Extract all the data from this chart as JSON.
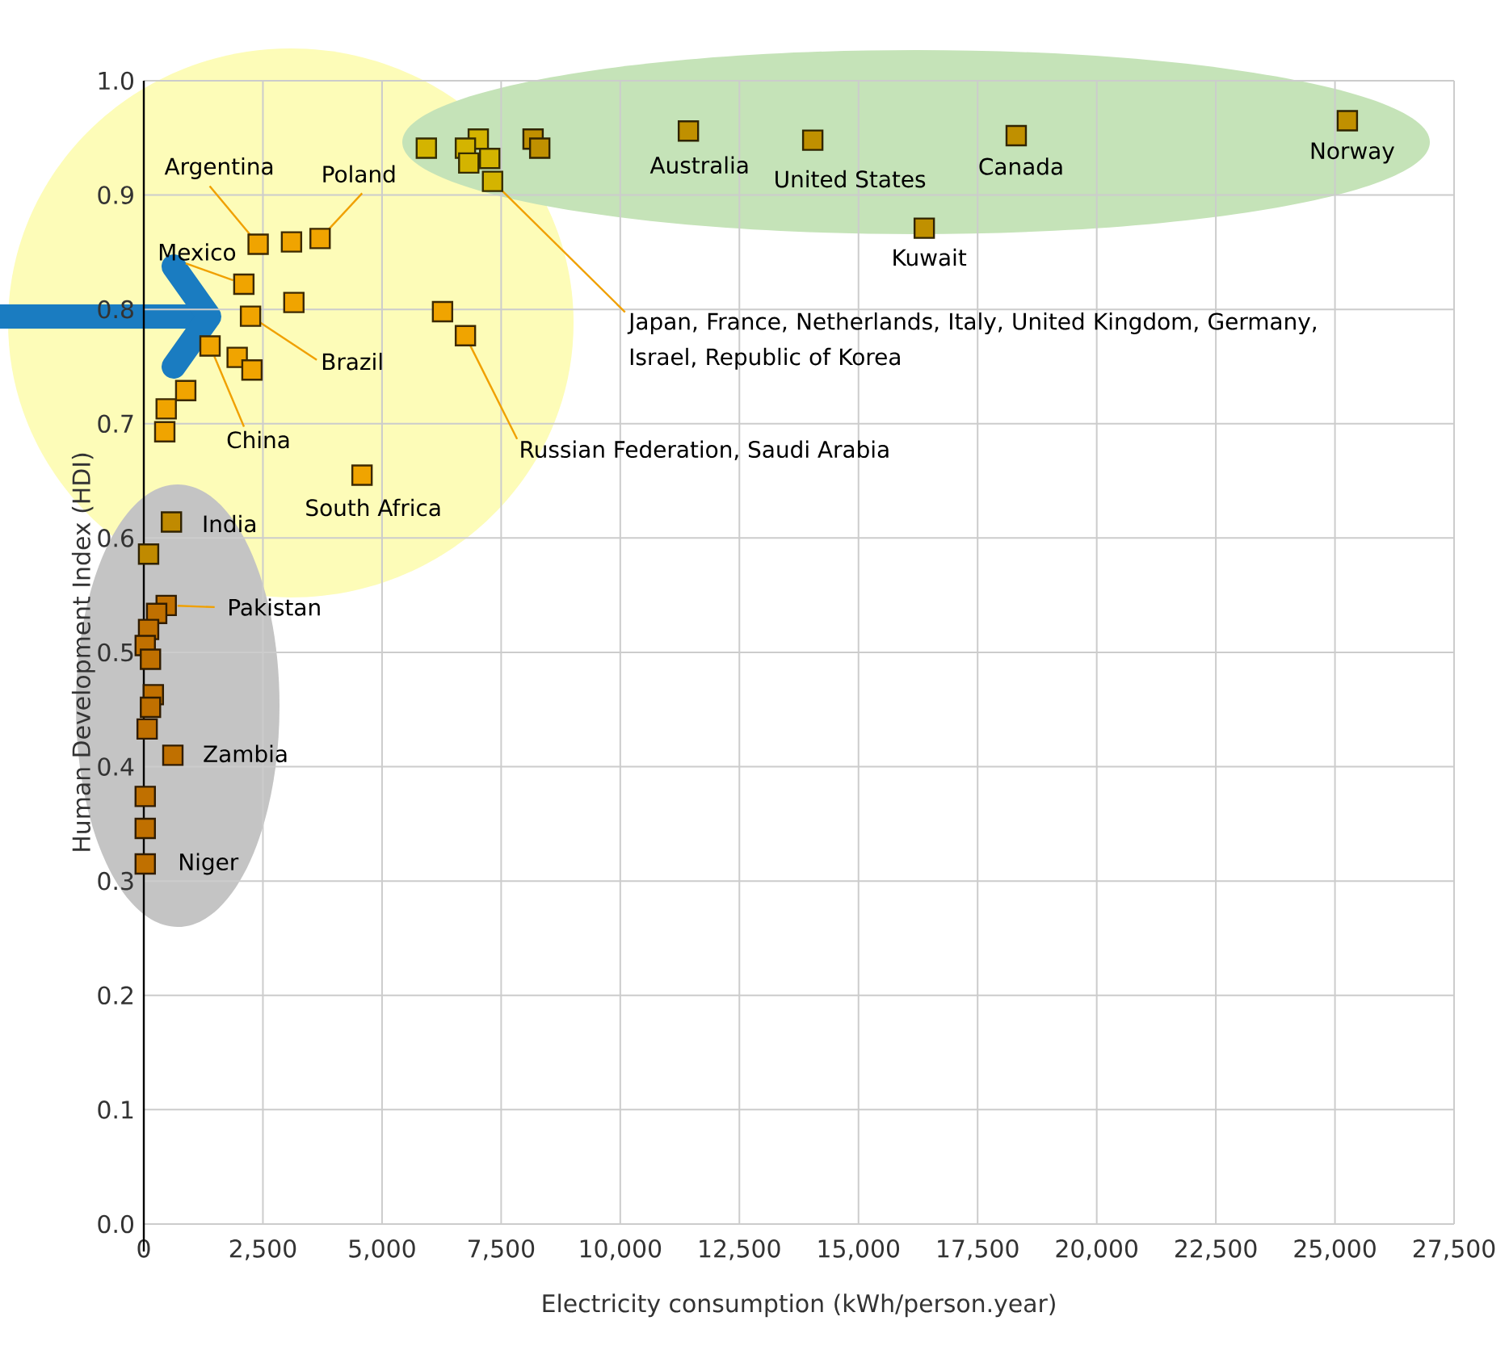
{
  "chart_data": {
    "type": "scatter",
    "xlabel": "Electricity consumption (kWh/person.year)",
    "ylabel": "Human Development Index (HDI)",
    "x": [
      2400,
      3100,
      3700,
      2100,
      3150,
      2240,
      1390,
      1960,
      2270,
      880,
      470,
      440,
      6270,
      6750,
      4580,
      580,
      100,
      470,
      270,
      100,
      30,
      140,
      200,
      140,
      70,
      610,
      30,
      30,
      30,
      5930,
      7020,
      6750,
      7260,
      6820,
      7320,
      8170,
      8310,
      11430,
      14040,
      18310,
      16380,
      25260
    ],
    "values": [
      0.857,
      0.859,
      0.862,
      0.822,
      0.806,
      0.794,
      0.768,
      0.758,
      0.747,
      0.729,
      0.713,
      0.693,
      0.798,
      0.777,
      0.655,
      0.614,
      0.586,
      0.541,
      0.534,
      0.52,
      0.506,
      0.494,
      0.463,
      0.452,
      0.433,
      0.41,
      0.374,
      0.346,
      0.315,
      0.941,
      0.949,
      0.941,
      0.932,
      0.928,
      0.912,
      0.949,
      0.941,
      0.956,
      0.948,
      0.952,
      0.871,
      0.965
    ],
    "colors": [
      "#f0a400",
      "#f0a400",
      "#f0a400",
      "#f0a400",
      "#f0a400",
      "#f0a400",
      "#f0a400",
      "#f0a400",
      "#f0a400",
      "#f0a400",
      "#f0a400",
      "#f0a400",
      "#f0a400",
      "#f0a400",
      "#f0a400",
      "#c08a00",
      "#c08a00",
      "#c07000",
      "#c07000",
      "#c07000",
      "#c07000",
      "#c07000",
      "#c07000",
      "#c07000",
      "#c07000",
      "#c07000",
      "#c07000",
      "#c07000",
      "#c07000",
      "#d4b400",
      "#d4b400",
      "#d4b400",
      "#d4b400",
      "#d4b400",
      "#d4b400",
      "#c09000",
      "#c09000",
      "#c09000",
      "#c09000",
      "#c09000",
      "#c09000",
      "#c09000"
    ],
    "xlim": [
      0,
      27500
    ],
    "ylim": [
      0,
      1
    ],
    "xticks": [
      0,
      {
        "value": 2500,
        "label": "2,500"
      },
      {
        "value": 5000,
        "label": "5,000"
      },
      {
        "value": 7500,
        "label": "7,500"
      },
      {
        "value": 10000,
        "label": "10,000"
      },
      {
        "value": 12500,
        "label": "12,500"
      },
      {
        "value": 15000,
        "label": "15,000"
      },
      {
        "value": 17500,
        "label": "17,500"
      },
      {
        "value": 20000,
        "label": "20,000"
      },
      {
        "value": 22500,
        "label": "22,500"
      },
      {
        "value": 25000,
        "label": "25,000"
      },
      {
        "value": 27500,
        "label": "27,500"
      }
    ],
    "yticks": [
      {
        "value": 0,
        "label": "0.0"
      },
      0.1,
      0.2,
      0.3,
      0.4,
      0.5,
      0.6,
      0.7,
      0.8,
      0.9,
      {
        "value": 1,
        "label": "1.0"
      }
    ],
    "grid": true,
    "marker": "square",
    "annotations": [
      {
        "text": "Argentina",
        "x": 2400,
        "y": 0.857
      },
      {
        "text": "Poland",
        "x": 3700,
        "y": 0.862
      },
      {
        "text": "Mexico",
        "x": 2100,
        "y": 0.822
      },
      {
        "text": "Brazil",
        "x": 2240,
        "y": 0.794
      },
      {
        "text": "China",
        "x": 1390,
        "y": 0.768
      },
      {
        "text": "South Africa",
        "x": 4580,
        "y": 0.655
      },
      {
        "text": "India",
        "x": 580,
        "y": 0.614
      },
      {
        "text": "Pakistan",
        "x": 470,
        "y": 0.541
      },
      {
        "text": "Zambia",
        "x": 610,
        "y": 0.41
      },
      {
        "text": "Niger",
        "x": 30,
        "y": 0.315
      },
      {
        "text": "Australia",
        "x": 11430,
        "y": 0.956
      },
      {
        "text": "United States",
        "x": 14040,
        "y": 0.948
      },
      {
        "text": "Canada",
        "x": 18310,
        "y": 0.952
      },
      {
        "text": "Kuwait",
        "x": 16380,
        "y": 0.871
      },
      {
        "text": "Norway",
        "x": 25260,
        "y": 0.965
      },
      {
        "text": "Japan, France, Netherlands, Italy, United Kingdom, Germany, Israel, Republic of Korea",
        "x": 7320,
        "y": 0.912
      },
      {
        "text": "Russian Federation, Saudi Arabia",
        "x": 6750,
        "y": 0.777
      }
    ]
  }
}
